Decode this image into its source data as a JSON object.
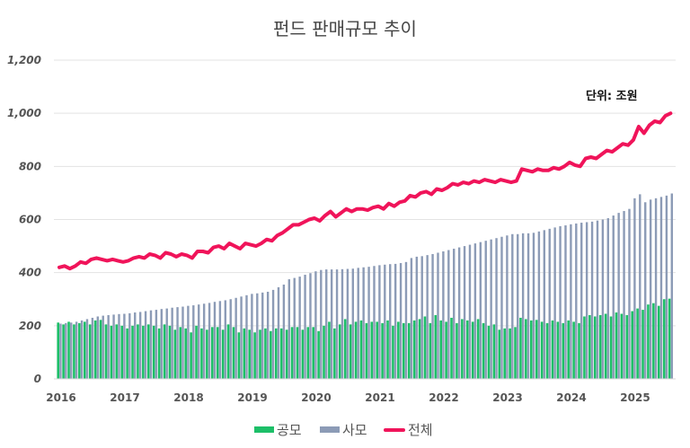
{
  "chart_data": {
    "type": "bar",
    "title": "펀드 판매규모  추이",
    "unit_label": "단위: 조원",
    "xlabel": "",
    "ylabel": "",
    "ylim": [
      0,
      1200
    ],
    "yticks": [
      "0",
      "200",
      "400",
      "600",
      "800",
      "1,000",
      "1,200"
    ],
    "ytick_values": [
      0,
      200,
      400,
      600,
      800,
      1000,
      1200
    ],
    "xticks": [
      "2016",
      "2017",
      "2018",
      "2019",
      "2020",
      "2021",
      "2022",
      "2023",
      "2024",
      "2025"
    ],
    "x_frequency": "monthly",
    "x_start": "2016-01",
    "x_end": "2025-08",
    "grid": true,
    "legend_position": "bottom",
    "series": [
      {
        "name": "공모",
        "type": "bar",
        "color": "#1dbf68",
        "values": [
          212,
          205,
          215,
          205,
          210,
          215,
          205,
          220,
          222,
          205,
          200,
          205,
          200,
          190,
          200,
          205,
          200,
          205,
          200,
          190,
          205,
          200,
          185,
          195,
          190,
          175,
          200,
          190,
          185,
          195,
          195,
          185,
          205,
          195,
          175,
          190,
          185,
          175,
          185,
          190,
          180,
          190,
          190,
          185,
          195,
          195,
          185,
          195,
          195,
          180,
          200,
          215,
          190,
          205,
          225,
          205,
          215,
          220,
          210,
          215,
          215,
          210,
          220,
          200,
          215,
          210,
          210,
          220,
          225,
          235,
          210,
          240,
          220,
          215,
          230,
          210,
          225,
          220,
          215,
          225,
          210,
          200,
          205,
          185,
          190,
          190,
          195,
          230,
          225,
          220,
          222,
          215,
          210,
          220,
          215,
          210,
          220,
          215,
          210,
          235,
          240,
          235,
          240,
          245,
          235,
          250,
          245,
          240,
          255,
          265,
          260,
          280,
          285,
          275,
          300,
          302
        ]
      },
      {
        "name": "사모",
        "type": "bar",
        "color": "#8c9bb6",
        "values": [
          208,
          210,
          212,
          215,
          220,
          225,
          230,
          235,
          238,
          240,
          242,
          244,
          245,
          247,
          250,
          252,
          255,
          258,
          260,
          263,
          265,
          268,
          270,
          272,
          275,
          277,
          280,
          283,
          286,
          290,
          293,
          296,
          300,
          305,
          310,
          315,
          320,
          322,
          325,
          328,
          335,
          345,
          355,
          375,
          380,
          385,
          392,
          398,
          405,
          410,
          412,
          412,
          412,
          413,
          414,
          415,
          418,
          420,
          422,
          425,
          428,
          430,
          432,
          433,
          436,
          440,
          455,
          460,
          462,
          466,
          470,
          475,
          480,
          485,
          490,
          495,
          500,
          505,
          510,
          515,
          520,
          525,
          530,
          535,
          540,
          545,
          545,
          548,
          548,
          550,
          555,
          560,
          565,
          570,
          575,
          578,
          582,
          585,
          588,
          590,
          592,
          596,
          600,
          605,
          615,
          625,
          632,
          640,
          680,
          695,
          665,
          675,
          680,
          685,
          690,
          698
        ]
      },
      {
        "name": "전체",
        "type": "line",
        "color": "#f0145a",
        "values": [
          420,
          425,
          415,
          425,
          440,
          435,
          450,
          455,
          450,
          445,
          450,
          445,
          440,
          445,
          455,
          460,
          455,
          470,
          465,
          455,
          475,
          470,
          460,
          470,
          465,
          455,
          480,
          480,
          475,
          495,
          500,
          490,
          510,
          500,
          490,
          510,
          505,
          500,
          510,
          525,
          520,
          540,
          550,
          565,
          580,
          580,
          590,
          600,
          605,
          595,
          615,
          630,
          610,
          625,
          640,
          630,
          640,
          640,
          635,
          645,
          650,
          640,
          660,
          650,
          665,
          670,
          690,
          685,
          700,
          705,
          695,
          715,
          710,
          720,
          735,
          730,
          740,
          735,
          745,
          740,
          750,
          745,
          740,
          750,
          745,
          740,
          745,
          790,
          785,
          780,
          790,
          785,
          785,
          795,
          790,
          800,
          815,
          805,
          800,
          830,
          835,
          830,
          845,
          860,
          855,
          870,
          885,
          880,
          900,
          950,
          925,
          955,
          970,
          965,
          990,
          1000
        ]
      }
    ]
  }
}
